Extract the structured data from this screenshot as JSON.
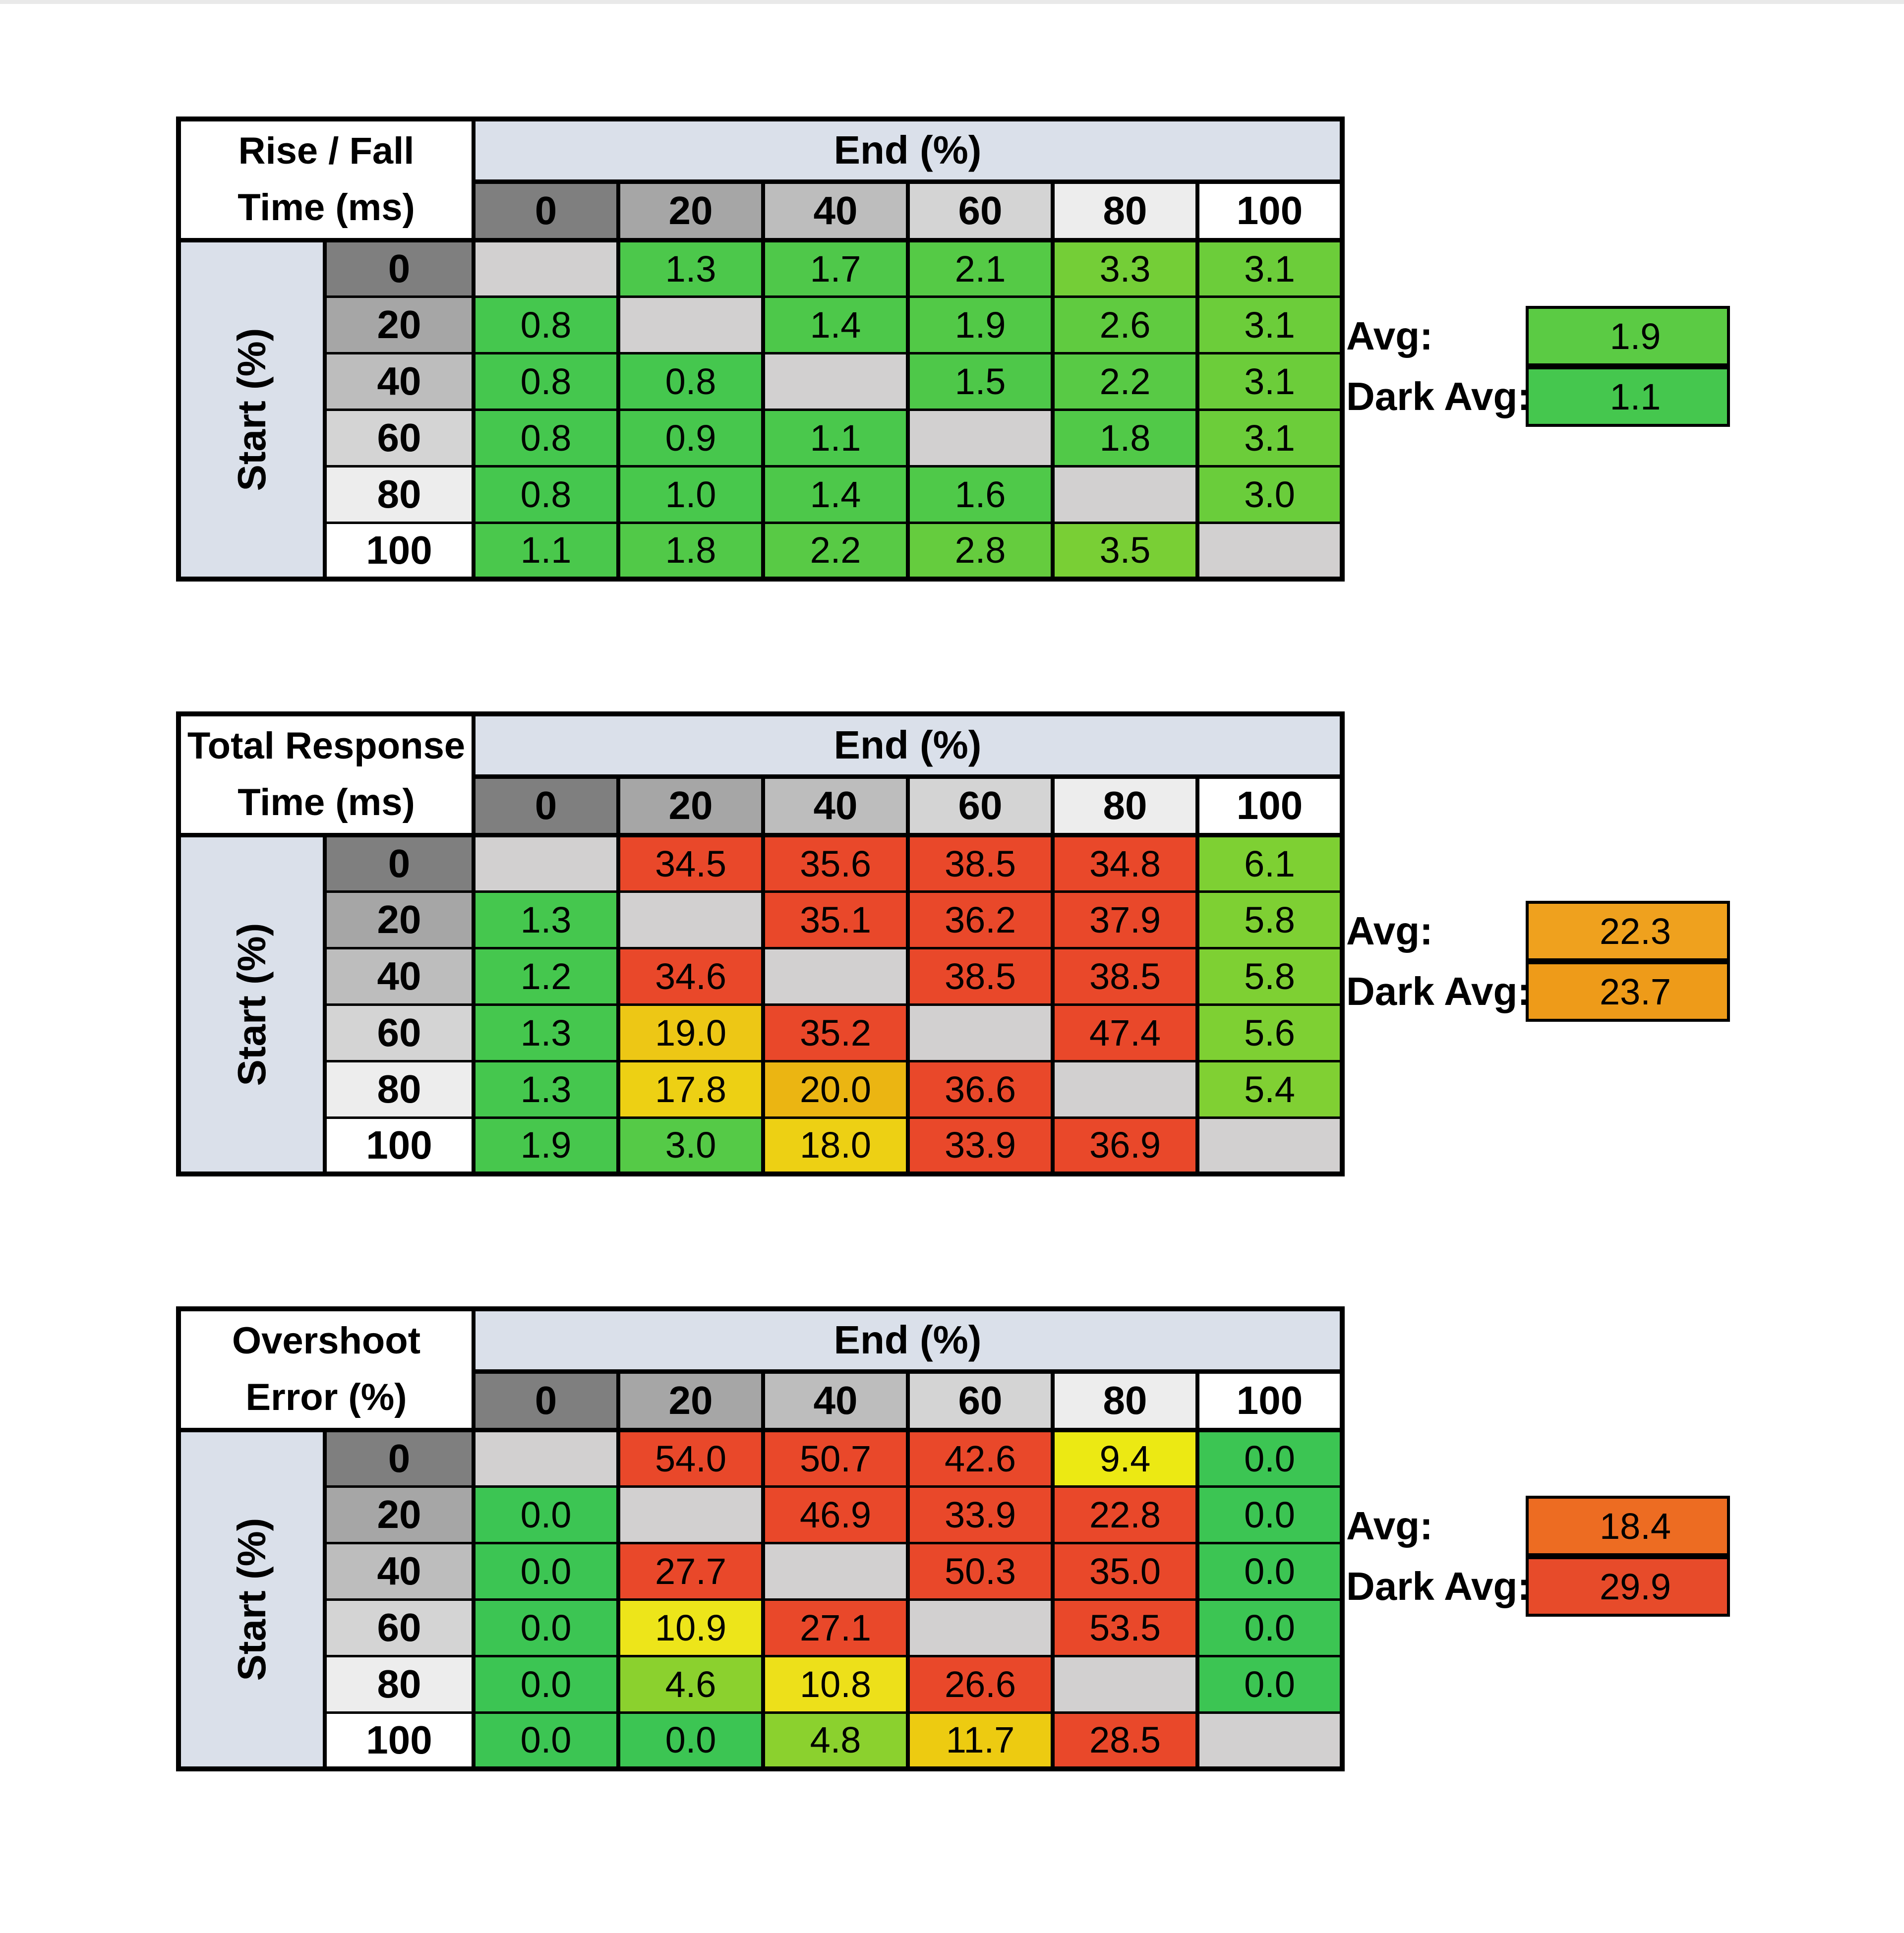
{
  "page": {
    "background": "#ffffff",
    "top_strip_color": "#e9e9e9"
  },
  "style": {
    "header_band_color": "#dae0ea",
    "header_shades": [
      "#7f7f7f",
      "#a6a6a6",
      "#bdbdbd",
      "#d4d4d4",
      "#ededed",
      "#ffffff"
    ],
    "diagonal_color": "#d2d0d0",
    "border_color": "#000000",
    "text_color": "#000000"
  },
  "chart_data": [
    {
      "type": "heatmap",
      "title": [
        "Rise / Fall",
        "Time (ms)"
      ],
      "x_label": "End (%)",
      "y_label": "Start (%)",
      "x": [
        0,
        20,
        40,
        60,
        80,
        100
      ],
      "y": [
        0,
        20,
        40,
        60,
        80,
        100
      ],
      "values": [
        [
          null,
          1.3,
          1.7,
          2.1,
          3.3,
          3.1
        ],
        [
          0.8,
          null,
          1.4,
          1.9,
          2.6,
          3.1
        ],
        [
          0.8,
          0.8,
          null,
          1.5,
          2.2,
          3.1
        ],
        [
          0.8,
          0.9,
          1.1,
          null,
          1.8,
          3.1
        ],
        [
          0.8,
          1.0,
          1.4,
          1.6,
          null,
          3.0
        ],
        [
          1.1,
          1.8,
          2.2,
          2.8,
          3.5,
          null
        ]
      ],
      "cell_colors": [
        [
          null,
          "#4cc84b",
          "#4fc84a",
          "#55ca46",
          "#74ce37",
          "#6ccd3a"
        ],
        [
          "#45c74e",
          null,
          "#4dc84a",
          "#52c947",
          "#60cb40",
          "#6ccd3a"
        ],
        [
          "#45c74e",
          "#45c74e",
          null,
          "#4ec849",
          "#58ca45",
          "#6ccd3a"
        ],
        [
          "#45c74e",
          "#47c74d",
          "#4ac84c",
          null,
          "#51c948",
          "#6ccd3a"
        ],
        [
          "#45c74e",
          "#48c84c",
          "#4dc84a",
          "#4fc949",
          null,
          "#6acd3b"
        ],
        [
          "#4ac84c",
          "#51c948",
          "#58ca45",
          "#65cc3e",
          "#79cf35",
          null
        ]
      ],
      "avg_label": "Avg:",
      "dark_avg_label": "Dark Avg:",
      "avg": 1.9,
      "dark_avg": 1.1,
      "avg_color": "#5bcb44",
      "dark_avg_color": "#45c74e"
    },
    {
      "type": "heatmap",
      "title": [
        "Total Response",
        "Time (ms)"
      ],
      "x_label": "End (%)",
      "y_label": "Start (%)",
      "x": [
        0,
        20,
        40,
        60,
        80,
        100
      ],
      "y": [
        0,
        20,
        40,
        60,
        80,
        100
      ],
      "values": [
        [
          null,
          34.5,
          35.6,
          38.5,
          34.8,
          6.1
        ],
        [
          1.3,
          null,
          35.1,
          36.2,
          37.9,
          5.8
        ],
        [
          1.2,
          34.6,
          null,
          38.5,
          38.5,
          5.8
        ],
        [
          1.3,
          19.0,
          35.2,
          null,
          47.4,
          5.6
        ],
        [
          1.3,
          17.8,
          20.0,
          36.6,
          null,
          5.4
        ],
        [
          1.9,
          3.0,
          18.0,
          33.9,
          36.9,
          null
        ]
      ],
      "cell_colors": [
        [
          null,
          "#e9482a",
          "#e9482a",
          "#e9482a",
          "#e9482a",
          "#7ed033"
        ],
        [
          "#45c74e",
          null,
          "#e9482a",
          "#e9482a",
          "#e9482a",
          "#7ed033"
        ],
        [
          "#45c74e",
          "#e9482a",
          null,
          "#e9482a",
          "#e9482a",
          "#7ed033"
        ],
        [
          "#45c74e",
          "#edc715",
          "#e9482a",
          null,
          "#e9482a",
          "#7ed033"
        ],
        [
          "#45c74e",
          "#edd014",
          "#ebb512",
          "#e9482a",
          null,
          "#80d033"
        ],
        [
          "#47c74d",
          "#55ca47",
          "#edd014",
          "#e9482a",
          "#e9482a",
          null
        ]
      ],
      "avg_label": "Avg:",
      "dark_avg_label": "Dark Avg:",
      "avg": 22.3,
      "dark_avg": 23.7,
      "avg_color": "#efa11e",
      "dark_avg_color": "#ee9b19"
    },
    {
      "type": "heatmap",
      "title": [
        "Overshoot",
        "Error (%)"
      ],
      "x_label": "End (%)",
      "y_label": "Start (%)",
      "x": [
        0,
        20,
        40,
        60,
        80,
        100
      ],
      "y": [
        0,
        20,
        40,
        60,
        80,
        100
      ],
      "values": [
        [
          null,
          54.0,
          50.7,
          42.6,
          9.4,
          0.0
        ],
        [
          0.0,
          null,
          46.9,
          33.9,
          22.8,
          0.0
        ],
        [
          0.0,
          27.7,
          null,
          50.3,
          35.0,
          0.0
        ],
        [
          0.0,
          10.9,
          27.1,
          null,
          53.5,
          0.0
        ],
        [
          0.0,
          4.6,
          10.8,
          26.6,
          null,
          0.0
        ],
        [
          0.0,
          0.0,
          4.8,
          11.7,
          28.5,
          null
        ]
      ],
      "cell_colors": [
        [
          null,
          "#e9482a",
          "#e9482a",
          "#e9482a",
          "#ece913",
          "#3cc553"
        ],
        [
          "#3cc553",
          null,
          "#e9482a",
          "#e9482a",
          "#e9482a",
          "#3cc553"
        ],
        [
          "#3cc553",
          "#e9482a",
          null,
          "#e9482a",
          "#e9482a",
          "#3cc553"
        ],
        [
          "#3cc553",
          "#ede51a",
          "#e9482a",
          null,
          "#e9482a",
          "#3cc553"
        ],
        [
          "#3cc553",
          "#8bd12e",
          "#ede01a",
          "#e9482a",
          null,
          "#3cc553"
        ],
        [
          "#3cc553",
          "#3cc553",
          "#8bd12e",
          "#edcb11",
          "#e9482a",
          null
        ]
      ],
      "avg_label": "Avg:",
      "dark_avg_label": "Dark Avg:",
      "avg": 18.4,
      "dark_avg": 29.9,
      "avg_color": "#ed6c22",
      "dark_avg_color": "#e74b2a"
    }
  ]
}
